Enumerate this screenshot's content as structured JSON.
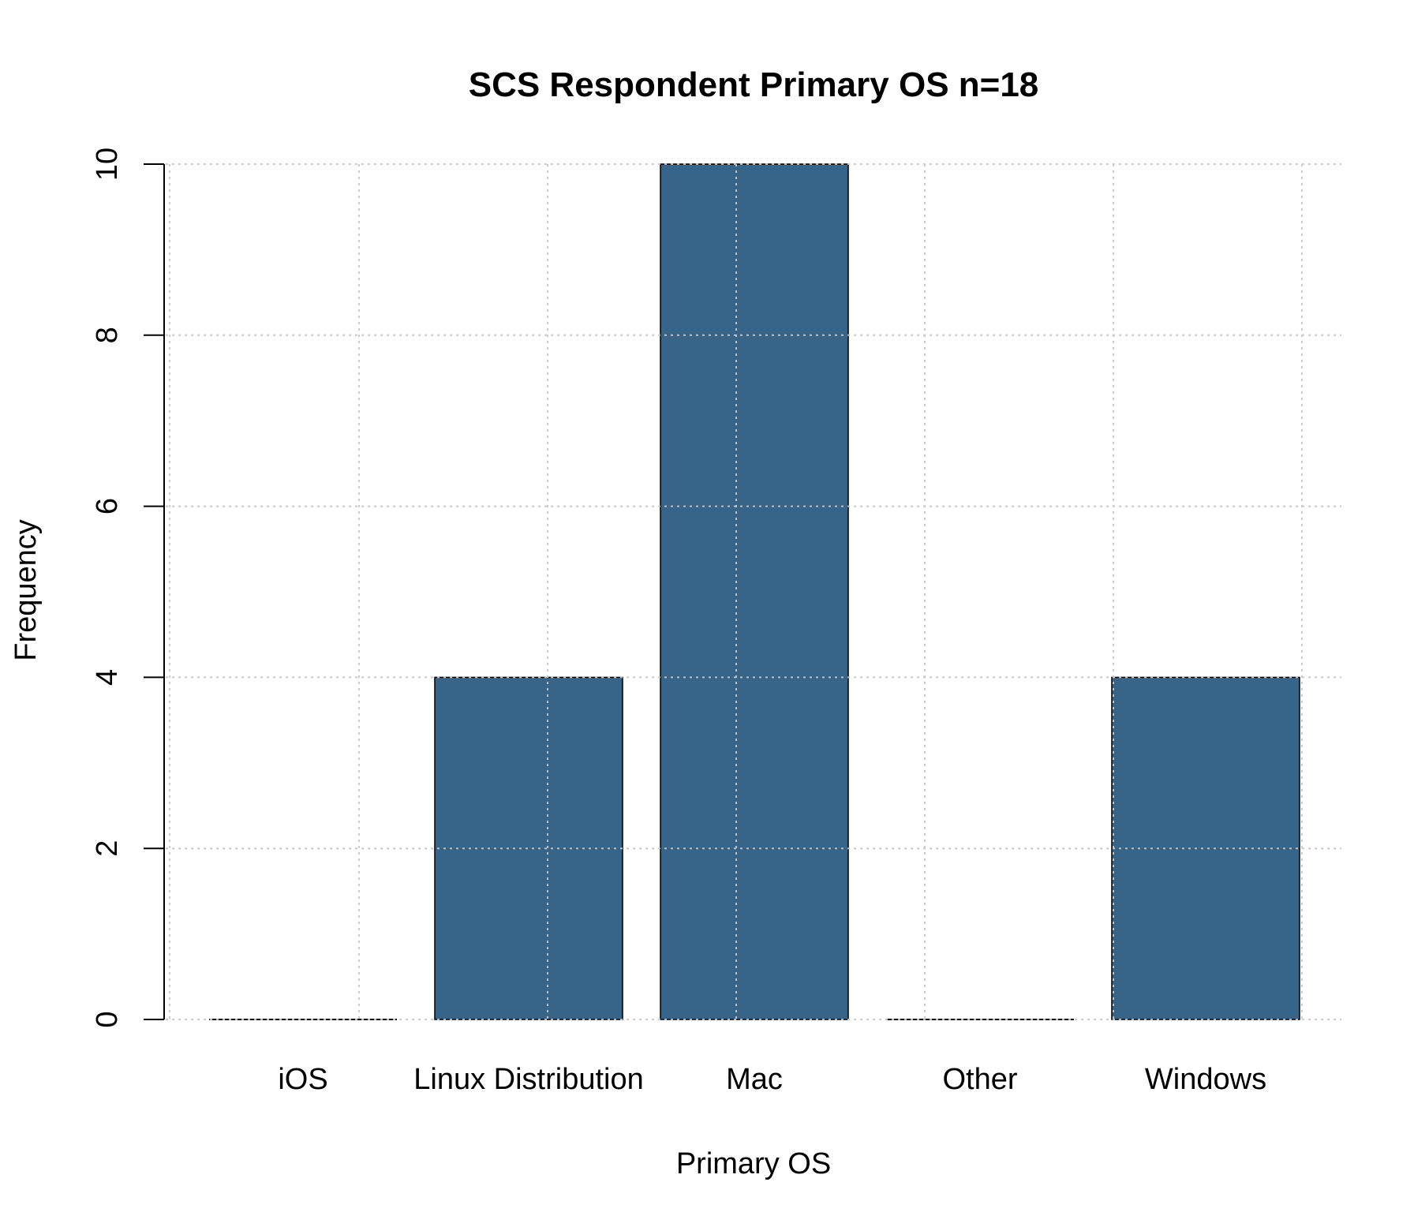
{
  "chart_data": {
    "type": "bar",
    "title": "SCS Respondent Primary OS n=18",
    "xlabel": "Primary OS",
    "ylabel": "Frequency",
    "categories": [
      "iOS",
      "Linux Distribution",
      "Mac",
      "Other",
      "Windows"
    ],
    "values": [
      0,
      4,
      10,
      0,
      4
    ],
    "ylim": [
      0,
      10
    ],
    "yticks": [
      "0",
      "2",
      "4",
      "6",
      "8",
      "10"
    ],
    "grid": true,
    "legend": "none",
    "colors": {
      "bar": "#376489",
      "grid": "#cccccc",
      "axis": "#000000"
    }
  }
}
